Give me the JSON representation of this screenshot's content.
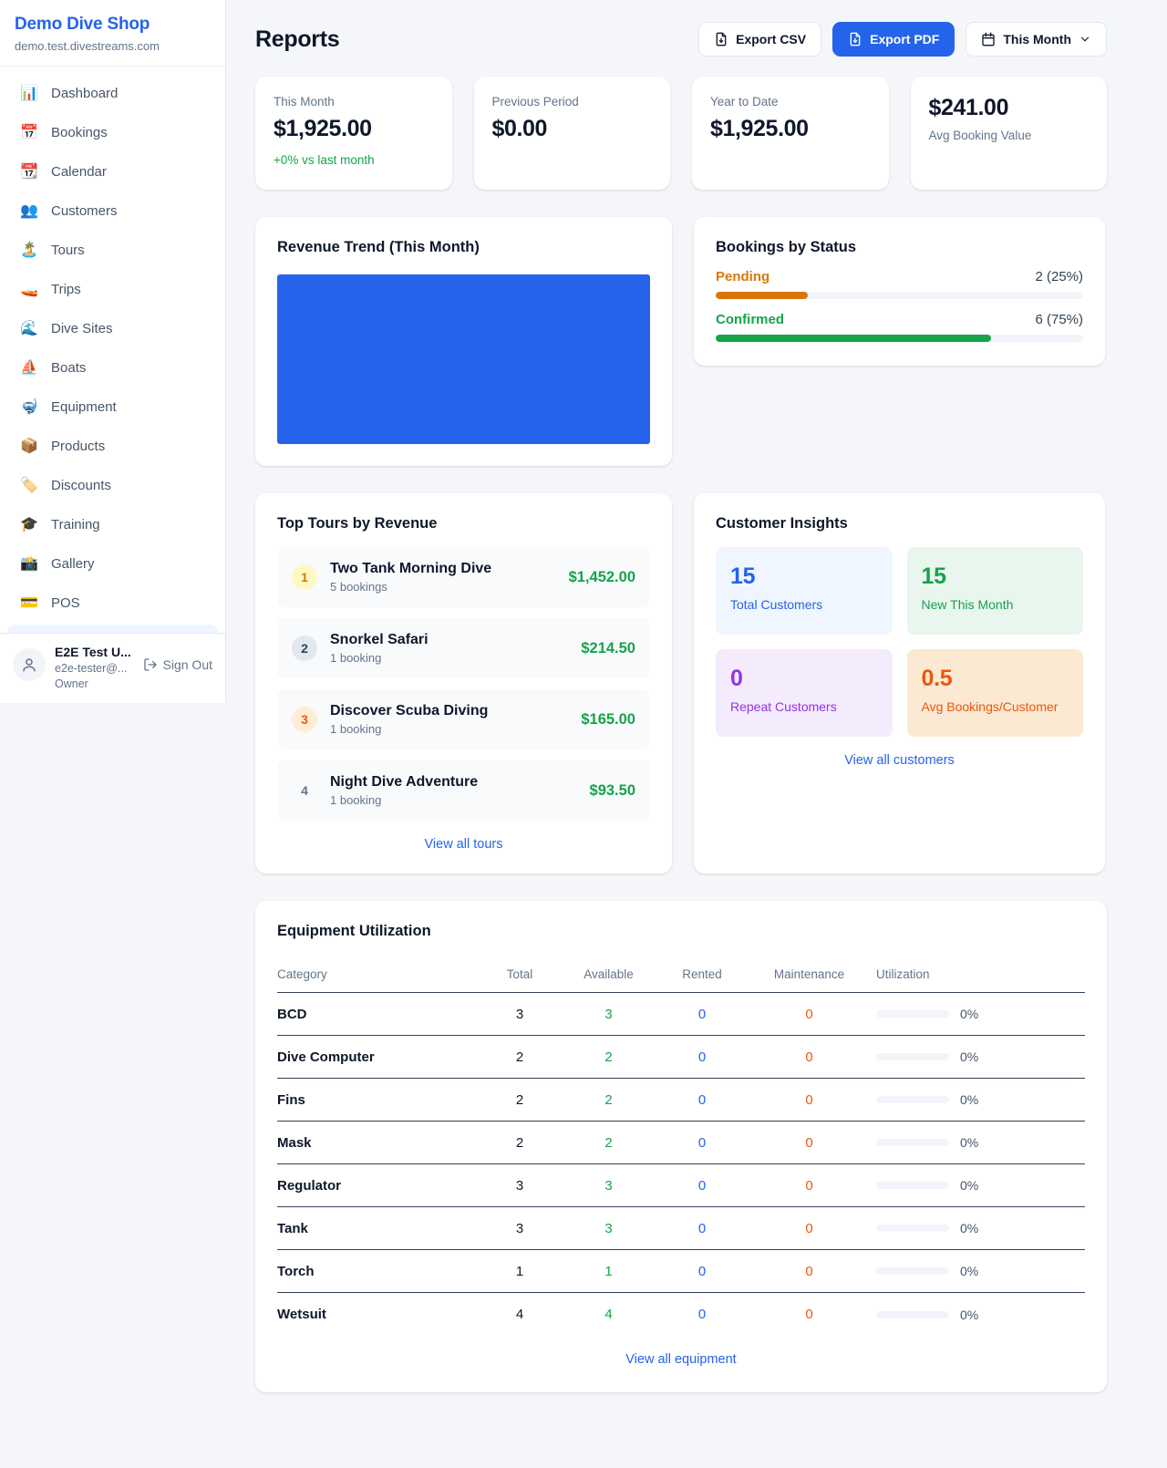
{
  "sidebar": {
    "brand": {
      "name": "Demo Dive Shop",
      "domain": "demo.test.divestreams.com"
    },
    "nav": [
      {
        "icon": "📊",
        "label": "Dashboard"
      },
      {
        "icon": "📅",
        "label": "Bookings"
      },
      {
        "icon": "📆",
        "label": "Calendar"
      },
      {
        "icon": "👥",
        "label": "Customers"
      },
      {
        "icon": "🏝️",
        "label": "Tours"
      },
      {
        "icon": "🚤",
        "label": "Trips"
      },
      {
        "icon": "🌊",
        "label": "Dive Sites"
      },
      {
        "icon": "⛵",
        "label": "Boats"
      },
      {
        "icon": "🤿",
        "label": "Equipment"
      },
      {
        "icon": "📦",
        "label": "Products"
      },
      {
        "icon": "🏷️",
        "label": "Discounts"
      },
      {
        "icon": "🎓",
        "label": "Training"
      },
      {
        "icon": "📸",
        "label": "Gallery"
      },
      {
        "icon": "💳",
        "label": "POS"
      }
    ],
    "user": {
      "name": "E2E Test U...",
      "email": "e2e-tester@...",
      "role": "Owner",
      "sign_out_label": "Sign Out"
    }
  },
  "header": {
    "title": "Reports",
    "export_csv_label": "Export CSV",
    "export_pdf_label": "Export PDF",
    "period_label": "This Month"
  },
  "stats": [
    {
      "label": "This Month",
      "value": "$1,925.00",
      "delta": "+0% vs last month",
      "value_first": false
    },
    {
      "label": "Previous Period",
      "value": "$0.00",
      "delta": "",
      "value_first": false
    },
    {
      "label": "Year to Date",
      "value": "$1,925.00",
      "delta": "",
      "value_first": false
    },
    {
      "label": "Avg Booking Value",
      "value": "$241.00",
      "delta": "",
      "value_first": true
    }
  ],
  "revenue_trend": {
    "title": "Revenue Trend (This Month)",
    "fill_color": "#2563eb"
  },
  "bookings_by_status": {
    "title": "Bookings by Status",
    "items": [
      {
        "label": "Pending",
        "value": "2 (25%)",
        "percent": 25,
        "color": "#d97706"
      },
      {
        "label": "Confirmed",
        "value": "6 (75%)",
        "percent": 75,
        "color": "#16a34a"
      }
    ]
  },
  "top_tours": {
    "title": "Top Tours by Revenue",
    "items": [
      {
        "rank": "1",
        "name": "Two Tank Morning Dive",
        "bookings": "5 bookings",
        "amount": "$1,452.00",
        "badge_bg": "#fef9c3",
        "badge_color": "#d97706"
      },
      {
        "rank": "2",
        "name": "Snorkel Safari",
        "bookings": "1 booking",
        "amount": "$214.50",
        "badge_bg": "#e2e8f0",
        "badge_color": "#334155"
      },
      {
        "rank": "3",
        "name": "Discover Scuba Diving",
        "bookings": "1 booking",
        "amount": "$165.00",
        "badge_bg": "#ffedd5",
        "badge_color": "#ea580c"
      },
      {
        "rank": "4",
        "name": "Night Dive Adventure",
        "bookings": "1 booking",
        "amount": "$93.50",
        "badge_bg": "transparent",
        "badge_color": "#64748b"
      }
    ],
    "view_all_label": "View all tours"
  },
  "customer_insights": {
    "title": "Customer Insights",
    "tiles": [
      {
        "value": "15",
        "label": "Total Customers",
        "color": "#2563eb",
        "bg": "#eff6ff"
      },
      {
        "value": "15",
        "label": "New This Month",
        "color": "#16a34a",
        "bg": "#e8f6ee"
      },
      {
        "value": "0",
        "label": "Repeat Customers",
        "color": "#9333ea",
        "bg": "#f4ebfd"
      },
      {
        "value": "0.5",
        "label": "Avg Bookings/Customer",
        "color": "#ea580c",
        "bg": "#fce9d3"
      }
    ],
    "view_all_label": "View all customers"
  },
  "equipment": {
    "title": "Equipment Utilization",
    "columns": [
      "Category",
      "Total",
      "Available",
      "Rented",
      "Maintenance",
      "Utilization"
    ],
    "rows": [
      {
        "category": "BCD",
        "total": "3",
        "available": "3",
        "rented": "0",
        "maintenance": "0",
        "utilization": "0%"
      },
      {
        "category": "Dive Computer",
        "total": "2",
        "available": "2",
        "rented": "0",
        "maintenance": "0",
        "utilization": "0%"
      },
      {
        "category": "Fins",
        "total": "2",
        "available": "2",
        "rented": "0",
        "maintenance": "0",
        "utilization": "0%"
      },
      {
        "category": "Mask",
        "total": "2",
        "available": "2",
        "rented": "0",
        "maintenance": "0",
        "utilization": "0%"
      },
      {
        "category": "Regulator",
        "total": "3",
        "available": "3",
        "rented": "0",
        "maintenance": "0",
        "utilization": "0%"
      },
      {
        "category": "Tank",
        "total": "3",
        "available": "3",
        "rented": "0",
        "maintenance": "0",
        "utilization": "0%"
      },
      {
        "category": "Torch",
        "total": "1",
        "available": "1",
        "rented": "0",
        "maintenance": "0",
        "utilization": "0%"
      },
      {
        "category": "Wetsuit",
        "total": "4",
        "available": "4",
        "rented": "0",
        "maintenance": "0",
        "utilization": "0%"
      }
    ],
    "view_all_label": "View all equipment"
  }
}
